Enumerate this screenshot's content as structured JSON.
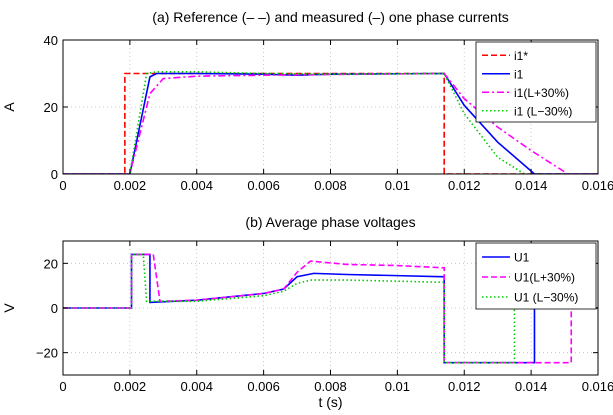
{
  "chart_data": [
    {
      "type": "line",
      "title": "(a) Reference (– –) and measured (–) one phase currents",
      "xlabel": "",
      "ylabel": "A",
      "xlim": [
        0,
        0.016
      ],
      "ylim": [
        0,
        40
      ],
      "xticks": [
        0,
        0.002,
        0.004,
        0.006,
        0.008,
        0.01,
        0.012,
        0.014,
        0.016
      ],
      "xtick_labels": [
        "0",
        "0.002",
        "0.004",
        "0.006",
        "0.008",
        "0.01",
        "0.012",
        "0.014",
        "0.016"
      ],
      "yticks": [
        0,
        20,
        40
      ],
      "ytick_labels": [
        "0",
        "20",
        "40"
      ],
      "grid": true,
      "legend": "top-right",
      "series": [
        {
          "name": "i1*",
          "color": "#ff0000",
          "style": "dashed",
          "x": [
            0,
            0.00185,
            0.00185,
            0.0114,
            0.0114,
            0.016
          ],
          "y": [
            0,
            0,
            30,
            30,
            0,
            0
          ]
        },
        {
          "name": "i1",
          "color": "#0000ff",
          "style": "solid",
          "x": [
            0,
            0.002,
            0.0026,
            0.0028,
            0.004,
            0.006,
            0.007,
            0.008,
            0.0114,
            0.012,
            0.013,
            0.0141,
            0.016
          ],
          "y": [
            0,
            0,
            29,
            30,
            30,
            29.8,
            29.5,
            29.8,
            30,
            20.5,
            9.5,
            0,
            0
          ]
        },
        {
          "name": "i1(L+30%)",
          "color": "#ff00ff",
          "style": "dashdot",
          "x": [
            0,
            0.002,
            0.0026,
            0.003,
            0.004,
            0.006,
            0.008,
            0.0114,
            0.012,
            0.013,
            0.014,
            0.0151,
            0.016
          ],
          "y": [
            0,
            0,
            24,
            28.5,
            29.2,
            29.5,
            29.7,
            30,
            22.5,
            14,
            7,
            0,
            0
          ]
        },
        {
          "name": "i1 (L−30%)",
          "color": "#00cc00",
          "style": "dotted",
          "x": [
            0,
            0.002,
            0.0025,
            0.0028,
            0.004,
            0.006,
            0.008,
            0.0114,
            0.012,
            0.013,
            0.0138,
            0.016
          ],
          "y": [
            0,
            0,
            30,
            30.5,
            30.5,
            30,
            29.8,
            30,
            18,
            5,
            0,
            0
          ]
        }
      ]
    },
    {
      "type": "line",
      "title": "(b) Average phase voltages",
      "xlabel": "t (s)",
      "ylabel": "V",
      "xlim": [
        0,
        0.016
      ],
      "ylim": [
        -30,
        30
      ],
      "xticks": [
        0,
        0.002,
        0.004,
        0.006,
        0.008,
        0.01,
        0.012,
        0.014,
        0.016
      ],
      "xtick_labels": [
        "0",
        "0.002",
        "0.004",
        "0.006",
        "0.008",
        "0.01",
        "0.012",
        "0.014",
        "0.016"
      ],
      "yticks": [
        -20,
        0,
        20
      ],
      "ytick_labels": [
        "−20",
        "0",
        "20"
      ],
      "grid": true,
      "legend": "top-right",
      "series": [
        {
          "name": "U1",
          "color": "#0000ff",
          "style": "solid",
          "x": [
            0,
            0.00205,
            0.00205,
            0.0026,
            0.0026,
            0.004,
            0.006,
            0.0066,
            0.007,
            0.0075,
            0.0085,
            0.01,
            0.0113,
            0.0114,
            0.0114,
            0.0141,
            0.0141,
            0.016
          ],
          "y": [
            0,
            0,
            24,
            24,
            2.5,
            3.5,
            6.5,
            8.5,
            14,
            15.5,
            15,
            14.5,
            14,
            14,
            -24.5,
            -24.5,
            0,
            0
          ]
        },
        {
          "name": "U1(L+30%)",
          "color": "#ff00ff",
          "style": "dashed",
          "x": [
            0,
            0.00205,
            0.00205,
            0.0027,
            0.0029,
            0.004,
            0.006,
            0.0066,
            0.007,
            0.0074,
            0.0085,
            0.01,
            0.0114,
            0.0114,
            0.0152,
            0.0152,
            0.016
          ],
          "y": [
            0,
            0,
            24,
            24,
            3,
            3.5,
            6.5,
            8.5,
            16,
            21,
            19.5,
            19,
            18,
            -24.5,
            -24.5,
            0,
            0
          ]
        },
        {
          "name": "U1 (L−30%)",
          "color": "#00cc00",
          "style": "dotted",
          "x": [
            0,
            0.00205,
            0.00205,
            0.0024,
            0.0025,
            0.004,
            0.006,
            0.0066,
            0.007,
            0.0074,
            0.0085,
            0.01,
            0.0114,
            0.0114,
            0.0135,
            0.0135,
            0.016
          ],
          "y": [
            0,
            0,
            24,
            24,
            3,
            3,
            5.5,
            7.5,
            11,
            12.5,
            12.5,
            12,
            11.5,
            -24.5,
            -24.5,
            0,
            0
          ]
        }
      ]
    }
  ]
}
